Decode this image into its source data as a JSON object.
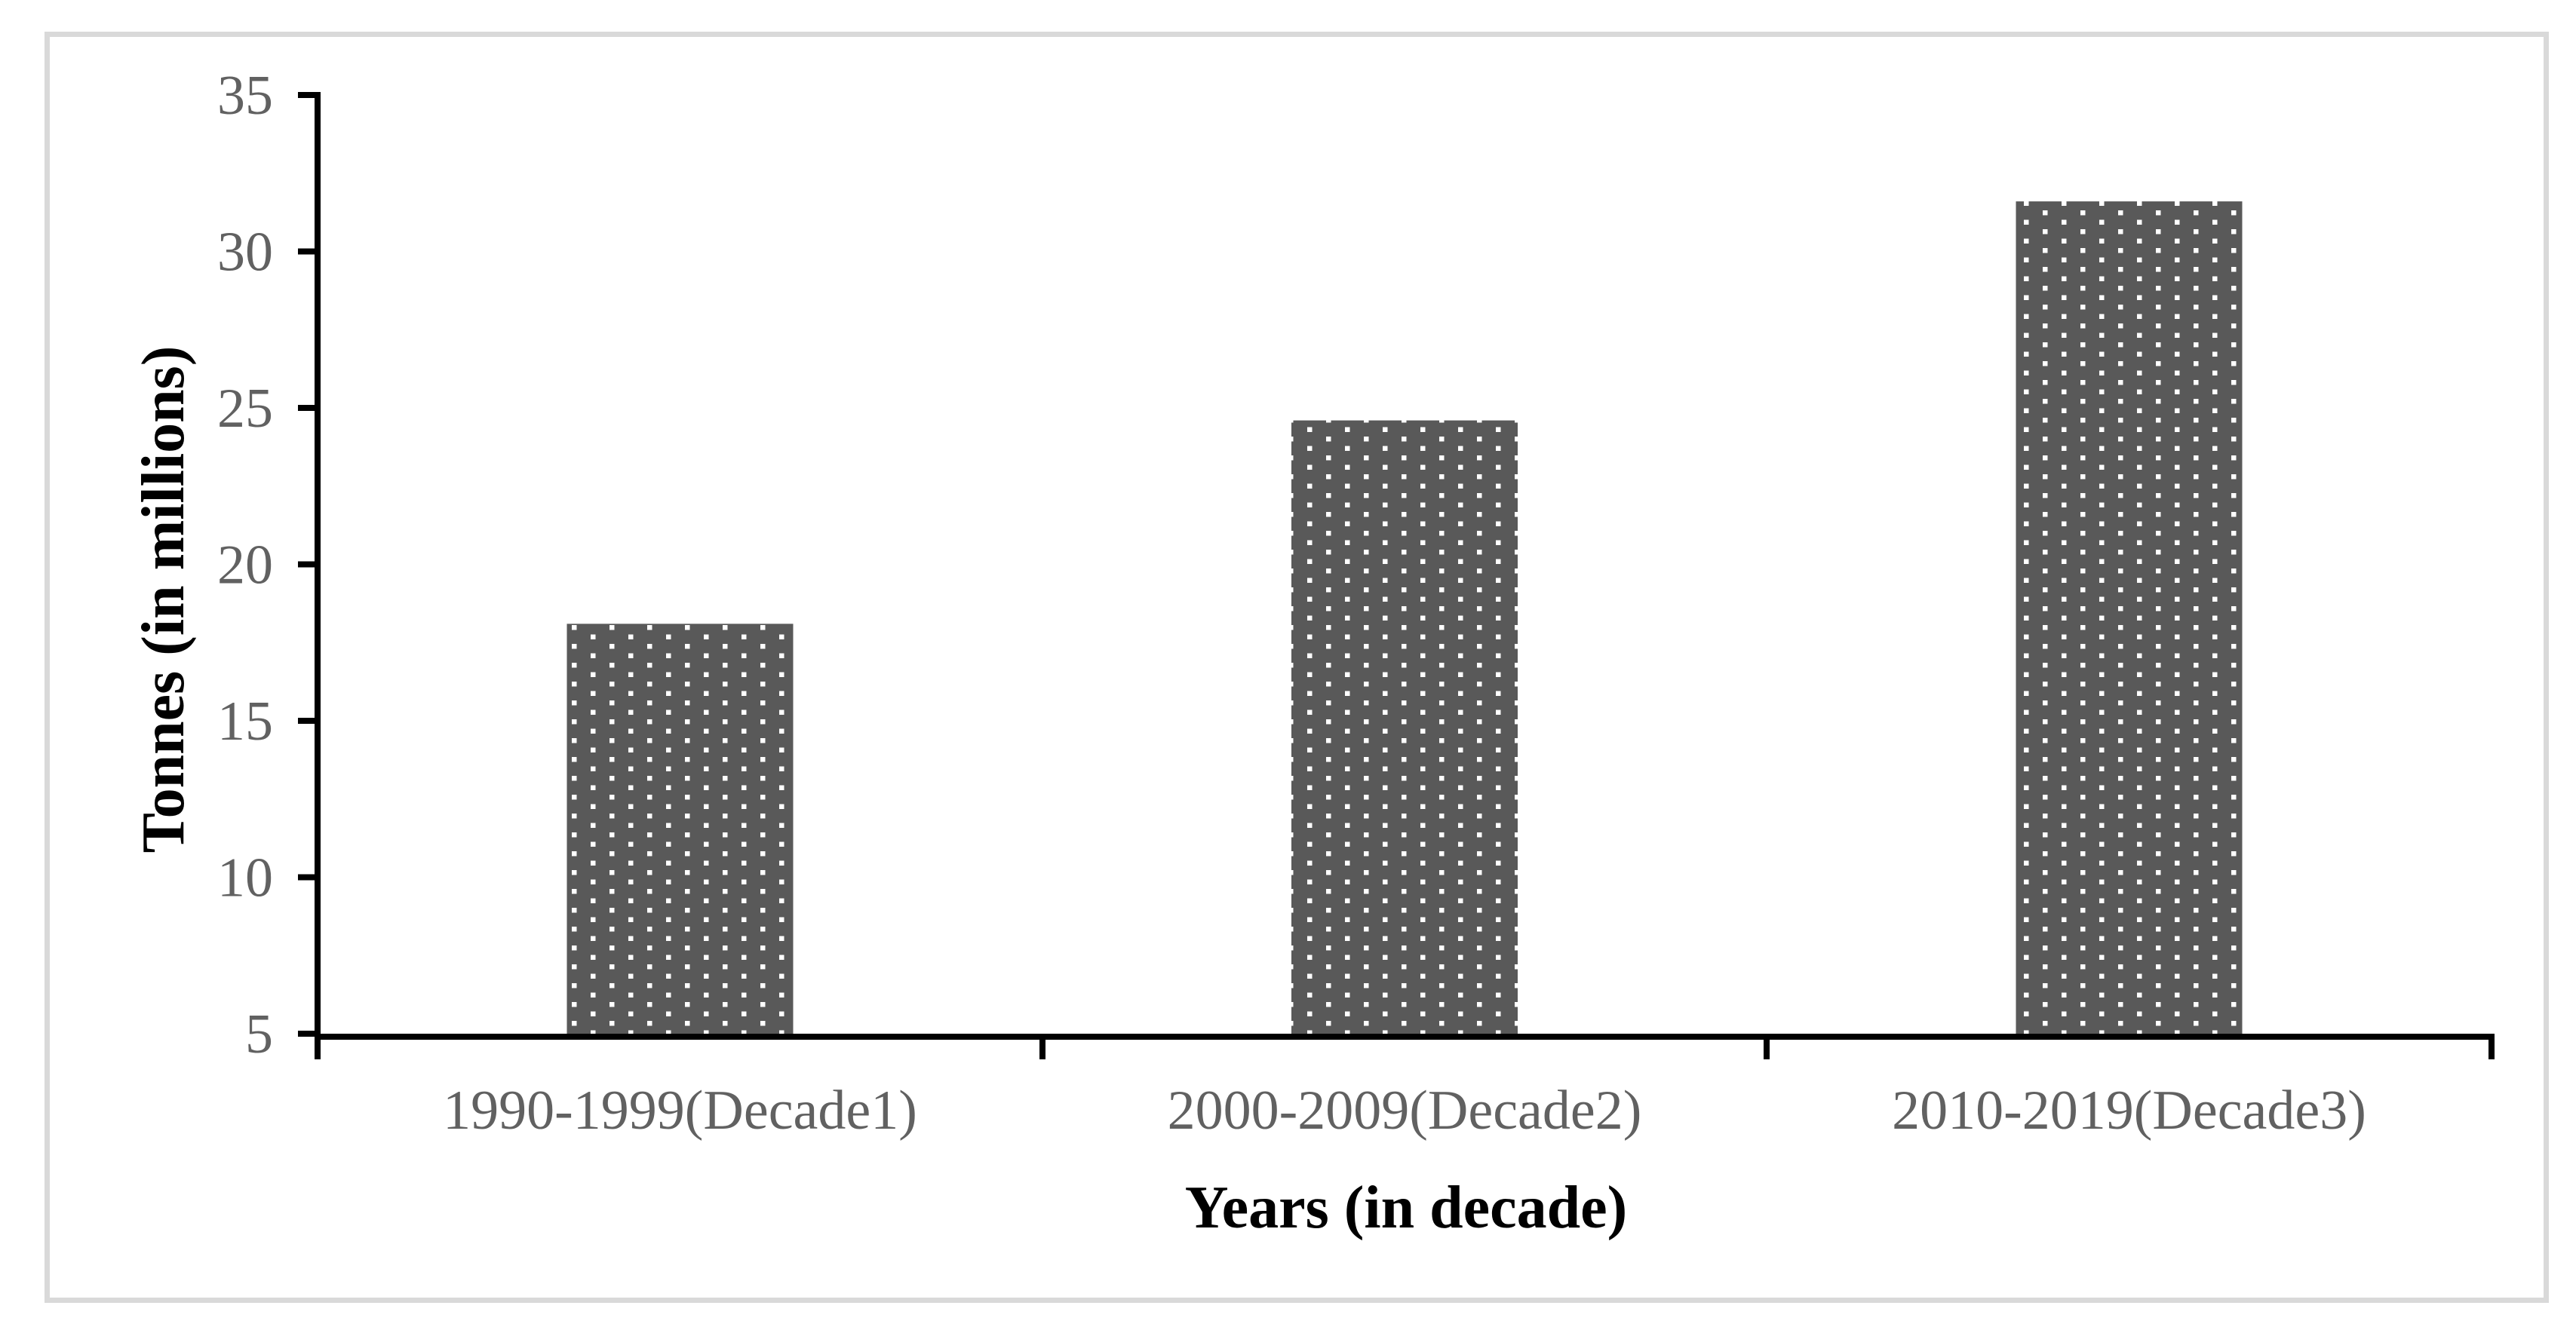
{
  "figure": {
    "background_color": "#ffffff",
    "frame_border_color": "#d9d9d9"
  },
  "chart_data": {
    "type": "bar",
    "title": "",
    "categories": [
      "1990-1999(Decade1)",
      "2000-2009(Decade2)",
      "2010-2019(Decade3)"
    ],
    "values": [
      18.1,
      24.6,
      31.6
    ],
    "xlabel": "Years (in decade)",
    "ylabel": "Tonnes (in millions)",
    "ylim": [
      5,
      35
    ],
    "yticks": [
      5,
      10,
      15,
      20,
      25,
      30,
      35
    ],
    "grid": false,
    "legend": false,
    "bar_fill_color": "#595959",
    "bar_pattern": "white-square-dots",
    "pattern_dot_color": "#ffffff",
    "axis_color": "#000000",
    "tick_label_color": "#616161",
    "title_color": "#000000"
  }
}
